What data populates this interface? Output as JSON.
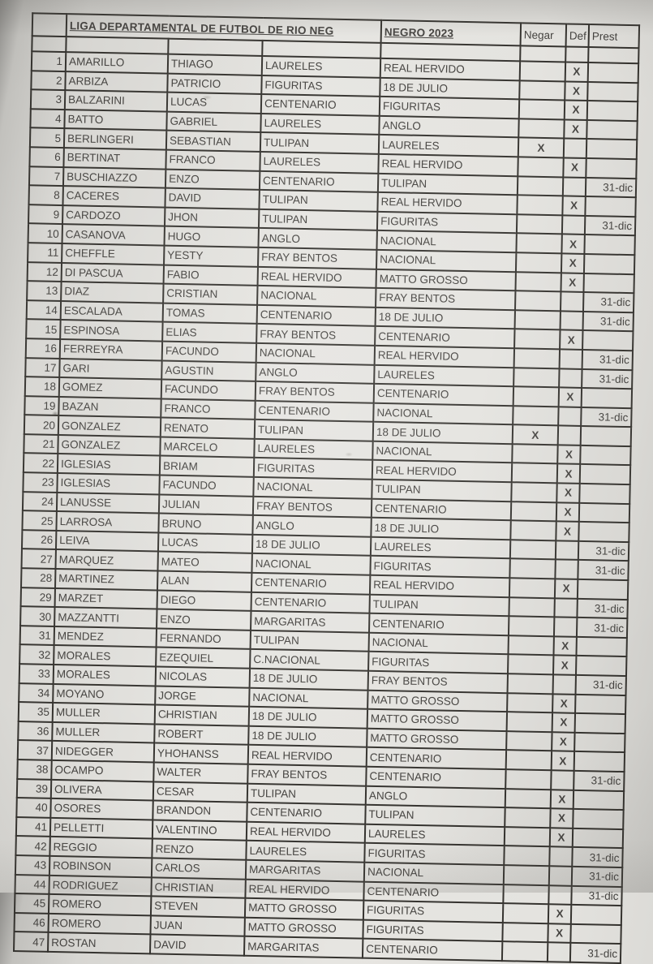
{
  "document": {
    "title_clipped": "LIGA DEPARTAMENTAL DE FUTBOL DE RIO NEG",
    "title_overlap": "NEGRO 2023"
  },
  "headers": {
    "negar": "Negar",
    "def": "Def",
    "prest": "Prest"
  },
  "colors": {
    "paper": "#e6e5e1",
    "ink": "#454340",
    "line": "#35332f"
  },
  "columns": [
    "n",
    "apellido",
    "nombre",
    "club_origen",
    "club_destino",
    "negar",
    "def",
    "prest"
  ],
  "rows": [
    [
      1,
      "AMARILLO",
      "THIAGO",
      "LAURELES",
      "REAL HERVIDO",
      "",
      "X",
      ""
    ],
    [
      2,
      "ARBIZA",
      "PATRICIO",
      "FIGURITAS",
      "18 DE JULIO",
      "",
      "X",
      ""
    ],
    [
      3,
      "BALZARINI",
      "LUCAS",
      "CENTENARIO",
      "FIGURITAS",
      "",
      "X",
      ""
    ],
    [
      4,
      "BATTO",
      "GABRIEL",
      "LAURELES",
      "ANGLO",
      "",
      "X",
      ""
    ],
    [
      5,
      "BERLINGERI",
      "SEBASTIAN",
      "TULIPAN",
      "LAURELES",
      "X",
      "",
      ""
    ],
    [
      6,
      "BERTINAT",
      "FRANCO",
      "LAURELES",
      "REAL HERVIDO",
      "",
      "X",
      ""
    ],
    [
      7,
      "BUSCHIAZZO",
      "ENZO",
      "CENTENARIO",
      "TULIPAN",
      "",
      "",
      "31-dic"
    ],
    [
      8,
      "CACERES",
      "DAVID",
      "TULIPAN",
      "REAL HERVIDO",
      "",
      "X",
      ""
    ],
    [
      9,
      "CARDOZO",
      "JHON",
      "TULIPAN",
      "FIGURITAS",
      "",
      "",
      "31-dic"
    ],
    [
      10,
      "CASANOVA",
      "HUGO",
      "ANGLO",
      "NACIONAL",
      "",
      "X",
      ""
    ],
    [
      11,
      "CHEFFLE",
      "YESTY",
      "FRAY BENTOS",
      "NACIONAL",
      "",
      "X",
      ""
    ],
    [
      12,
      "DI PASCUA",
      "FABIO",
      "REAL HERVIDO",
      "MATTO GROSSO",
      "",
      "X",
      ""
    ],
    [
      13,
      "DIAZ",
      "CRISTIAN",
      "NACIONAL",
      "FRAY BENTOS",
      "",
      "",
      "31-dic"
    ],
    [
      14,
      "ESCALADA",
      "TOMAS",
      "CENTENARIO",
      "18 DE JULIO",
      "",
      "",
      "31-dic"
    ],
    [
      15,
      "ESPINOSA",
      "ELIAS",
      "FRAY BENTOS",
      "CENTENARIO",
      "",
      "X",
      ""
    ],
    [
      16,
      "FERREYRA",
      "FACUNDO",
      "NACIONAL",
      "REAL HERVIDO",
      "",
      "",
      "31-dic"
    ],
    [
      17,
      "GARI",
      "AGUSTIN",
      "ANGLO",
      "LAURELES",
      "",
      "",
      "31-dic"
    ],
    [
      18,
      "GOMEZ",
      "FACUNDO",
      "FRAY BENTOS",
      "CENTENARIO",
      "",
      "X",
      ""
    ],
    [
      19,
      "BAZAN",
      "FRANCO",
      "CENTENARIO",
      "NACIONAL",
      "",
      "",
      "31-dic"
    ],
    [
      20,
      "GONZALEZ",
      "RENATO",
      "TULIPAN",
      "18 DE JULIO",
      "X",
      "",
      ""
    ],
    [
      21,
      "GONZALEZ",
      "MARCELO",
      "LAURELES",
      "NACIONAL",
      "",
      "X",
      ""
    ],
    [
      22,
      "IGLESIAS",
      "BRIAM",
      "FIGURITAS",
      "REAL HERVIDO",
      "",
      "X",
      ""
    ],
    [
      23,
      "IGLESIAS",
      "FACUNDO",
      "NACIONAL",
      "TULIPAN",
      "",
      "X",
      ""
    ],
    [
      24,
      "LANUSSE",
      "JULIAN",
      "FRAY BENTOS",
      "CENTENARIO",
      "",
      "X",
      ""
    ],
    [
      25,
      "LARROSA",
      "BRUNO",
      "ANGLO",
      "18 DE JULIO",
      "",
      "X",
      ""
    ],
    [
      26,
      "LEIVA",
      "LUCAS",
      "18 DE JULIO",
      "LAURELES",
      "",
      "",
      "31-dic"
    ],
    [
      27,
      "MARQUEZ",
      "MATEO",
      "NACIONAL",
      "FIGURITAS",
      "",
      "",
      "31-dic"
    ],
    [
      28,
      "MARTINEZ",
      "ALAN",
      "CENTENARIO",
      "REAL HERVIDO",
      "",
      "X",
      ""
    ],
    [
      29,
      "MARZET",
      "DIEGO",
      "CENTENARIO",
      "TULIPAN",
      "",
      "",
      "31-dic"
    ],
    [
      30,
      "MAZZANTTI",
      "ENZO",
      "MARGARITAS",
      "CENTENARIO",
      "",
      "",
      "31-dic"
    ],
    [
      31,
      "MENDEZ",
      "FERNANDO",
      "TULIPAN",
      "NACIONAL",
      "",
      "X",
      ""
    ],
    [
      32,
      "MORALES",
      "EZEQUIEL",
      "C.NACIONAL",
      "FIGURITAS",
      "",
      "X",
      ""
    ],
    [
      33,
      "MORALES",
      "NICOLAS",
      "18 DE JULIO",
      "FRAY BENTOS",
      "",
      "",
      "31-dic"
    ],
    [
      34,
      "MOYANO",
      "JORGE",
      "NACIONAL",
      "MATTO GROSSO",
      "",
      "X",
      ""
    ],
    [
      35,
      "MULLER",
      "CHRISTIAN",
      "18 DE JULIO",
      "MATTO GROSSO",
      "",
      "X",
      ""
    ],
    [
      36,
      "MULLER",
      "ROBERT",
      "18 DE JULIO",
      "MATTO GROSSO",
      "",
      "X",
      ""
    ],
    [
      37,
      "NIDEGGER",
      "YHOHANSS",
      "REAL HERVIDO",
      "CENTENARIO",
      "",
      "X",
      ""
    ],
    [
      38,
      "OCAMPO",
      "WALTER",
      "FRAY BENTOS",
      "CENTENARIO",
      "",
      "",
      "31-dic"
    ],
    [
      39,
      "OLIVERA",
      "CESAR",
      "TULIPAN",
      "ANGLO",
      "",
      "X",
      ""
    ],
    [
      40,
      "OSORES",
      "BRANDON",
      "CENTENARIO",
      "TULIPAN",
      "",
      "X",
      ""
    ],
    [
      41,
      "PELLETTI",
      "VALENTINO",
      "REAL HERVIDO",
      "LAURELES",
      "",
      "X",
      ""
    ],
    [
      42,
      "REGGIO",
      "RENZO",
      "LAURELES",
      "FIGURITAS",
      "",
      "",
      "31-dic"
    ],
    [
      43,
      "ROBINSON",
      "CARLOS",
      "MARGARITAS",
      "NACIONAL",
      "",
      "",
      "31-dic"
    ],
    [
      44,
      "RODRIGUEZ",
      "CHRISTIAN",
      "REAL HERVIDO",
      "CENTENARIO",
      "",
      "",
      "31-dic"
    ],
    [
      45,
      "ROMERO",
      "STEVEN",
      "MATTO GROSSO",
      "FIGURITAS",
      "",
      "X",
      ""
    ],
    [
      46,
      "ROMERO",
      "JUAN",
      "MATTO GROSSO",
      "FIGURITAS",
      "",
      "X",
      ""
    ],
    [
      47,
      "ROSTAN",
      "DAVID",
      "MARGARITAS",
      "CENTENARIO",
      "",
      "",
      "31-dic"
    ]
  ]
}
